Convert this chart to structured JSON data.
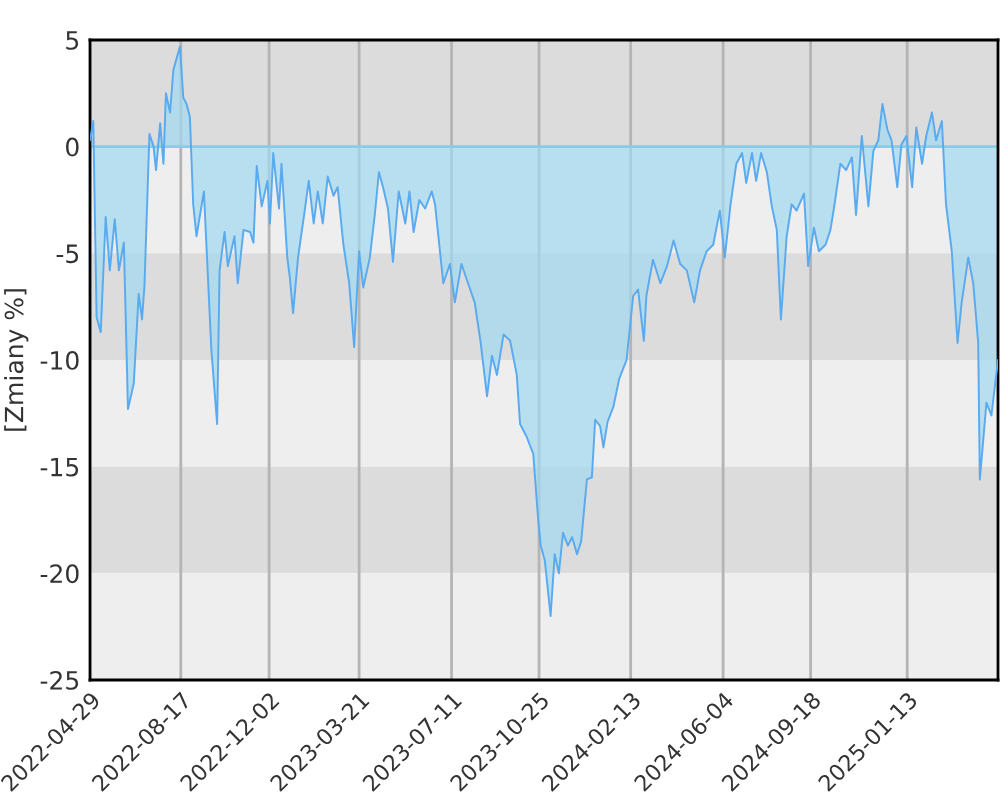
{
  "chart_data": {
    "type": "area",
    "ylabel": "[Zmiany %]",
    "x": [
      "2022-04-29",
      "2022-05-03",
      "2022-05-07",
      "2022-05-12",
      "2022-05-18",
      "2022-05-23",
      "2022-05-29",
      "2022-06-03",
      "2022-06-09",
      "2022-06-14",
      "2022-06-21",
      "2022-06-27",
      "2022-07-01",
      "2022-07-04",
      "2022-07-10",
      "2022-07-15",
      "2022-07-18",
      "2022-07-23",
      "2022-07-27",
      "2022-07-30",
      "2022-08-04",
      "2022-08-08",
      "2022-08-16",
      "2022-08-20",
      "2022-08-24",
      "2022-08-28",
      "2022-09-01",
      "2022-09-05",
      "2022-09-14",
      "2022-09-17",
      "2022-09-23",
      "2022-09-30",
      "2022-10-03",
      "2022-10-09",
      "2022-10-13",
      "2022-10-21",
      "2022-10-25",
      "2022-11-01",
      "2022-11-09",
      "2022-11-13",
      "2022-11-17",
      "2022-11-23",
      "2022-11-30",
      "2022-12-03",
      "2022-12-07",
      "2022-12-14",
      "2022-12-17",
      "2022-12-24",
      "2022-12-27",
      "2022-12-31",
      "2023-01-06",
      "2023-01-13",
      "2023-01-19",
      "2023-01-25",
      "2023-01-30",
      "2023-02-05",
      "2023-02-11",
      "2023-02-18",
      "2023-02-23",
      "2023-03-02",
      "2023-03-09",
      "2023-03-15",
      "2023-03-21",
      "2023-03-26",
      "2023-04-03",
      "2023-04-09",
      "2023-04-14",
      "2023-04-19",
      "2023-04-25",
      "2023-05-01",
      "2023-05-08",
      "2023-05-16",
      "2023-05-21",
      "2023-05-26",
      "2023-06-02",
      "2023-06-09",
      "2023-06-17",
      "2023-06-21",
      "2023-07-01",
      "2023-07-09",
      "2023-07-15",
      "2023-07-23",
      "2023-07-31",
      "2023-08-08",
      "2023-08-15",
      "2023-08-23",
      "2023-08-29",
      "2023-09-04",
      "2023-09-12",
      "2023-09-20",
      "2023-09-28",
      "2023-10-02",
      "2023-10-10",
      "2023-10-18",
      "2023-10-24",
      "2023-10-27",
      "2023-11-01",
      "2023-11-08",
      "2023-11-13",
      "2023-11-18",
      "2023-11-23",
      "2023-11-29",
      "2023-12-04",
      "2023-12-10",
      "2023-12-15",
      "2023-12-22",
      "2023-12-28",
      "2024-01-01",
      "2024-01-07",
      "2024-01-11",
      "2024-01-16",
      "2024-01-23",
      "2024-01-30",
      "2024-02-08",
      "2024-02-16",
      "2024-02-22",
      "2024-02-29",
      "2024-03-03",
      "2024-03-11",
      "2024-03-20",
      "2024-03-28",
      "2024-04-05",
      "2024-04-13",
      "2024-04-21",
      "2024-04-30",
      "2024-05-07",
      "2024-05-15",
      "2024-05-23",
      "2024-05-31",
      "2024-06-06",
      "2024-06-13",
      "2024-06-20",
      "2024-06-27",
      "2024-07-02",
      "2024-07-09",
      "2024-07-14",
      "2024-07-20",
      "2024-07-27",
      "2024-08-02",
      "2024-08-08",
      "2024-08-13",
      "2024-08-20",
      "2024-08-26",
      "2024-09-01",
      "2024-09-10",
      "2024-09-15",
      "2024-09-22",
      "2024-09-28",
      "2024-10-06",
      "2024-10-12",
      "2024-10-17",
      "2024-10-24",
      "2024-10-31",
      "2024-11-07",
      "2024-11-12",
      "2024-11-19",
      "2024-11-27",
      "2024-12-03",
      "2024-12-09",
      "2024-12-14",
      "2024-12-20",
      "2024-12-25",
      "2025-01-01",
      "2025-01-06",
      "2025-01-12",
      "2025-01-19",
      "2025-01-24",
      "2025-01-31",
      "2025-02-05",
      "2025-02-12",
      "2025-02-17",
      "2025-02-24",
      "2025-03-01",
      "2025-03-08",
      "2025-03-15",
      "2025-03-20",
      "2025-03-28",
      "2025-04-03",
      "2025-04-09",
      "2025-04-11",
      "2025-04-19",
      "2025-04-25",
      "2025-05-03"
    ],
    "series": [
      {
        "color": "#5aaaf0",
        "values": [
          0.3,
          1.2,
          -8.0,
          -8.7,
          -3.3,
          -5.8,
          -3.4,
          -5.8,
          -4.5,
          -12.3,
          -11.1,
          -6.9,
          -8.1,
          -6.5,
          0.6,
          0.0,
          -1.1,
          1.1,
          -0.8,
          2.5,
          1.6,
          3.6,
          4.7,
          2.3,
          2.0,
          1.4,
          -2.7,
          -4.2,
          -2.1,
          -4.6,
          -9.5,
          -13.0,
          -5.8,
          -4.0,
          -5.6,
          -4.2,
          -6.4,
          -3.9,
          -4.0,
          -4.5,
          -0.9,
          -2.8,
          -1.6,
          -3.6,
          -0.3,
          -2.9,
          -0.8,
          -5.2,
          -6.1,
          -7.8,
          -5.2,
          -3.3,
          -1.6,
          -3.6,
          -2.1,
          -3.6,
          -1.4,
          -2.3,
          -1.9,
          -4.6,
          -6.4,
          -9.4,
          -4.9,
          -6.6,
          -5.2,
          -3.2,
          -1.2,
          -1.9,
          -2.9,
          -5.4,
          -2.1,
          -3.6,
          -2.1,
          -4.0,
          -2.5,
          -2.9,
          -2.1,
          -2.7,
          -6.4,
          -5.5,
          -7.3,
          -5.5,
          -6.4,
          -7.3,
          -9.1,
          -11.7,
          -9.8,
          -10.7,
          -8.8,
          -9.1,
          -10.7,
          -13.0,
          -13.6,
          -14.4,
          -17.5,
          -18.7,
          -19.4,
          -22.0,
          -19.1,
          -20.0,
          -18.1,
          -18.7,
          -18.3,
          -19.1,
          -18.5,
          -15.6,
          -15.5,
          -12.8,
          -13.1,
          -14.1,
          -12.9,
          -12.2,
          -10.9,
          -10.0,
          -7.0,
          -6.7,
          -9.1,
          -7.0,
          -5.3,
          -6.4,
          -5.6,
          -4.4,
          -5.5,
          -5.8,
          -7.3,
          -5.8,
          -4.9,
          -4.6,
          -3.0,
          -5.2,
          -2.7,
          -0.8,
          -0.3,
          -1.7,
          -0.3,
          -1.6,
          -0.3,
          -1.2,
          -2.8,
          -3.9,
          -8.1,
          -4.2,
          -2.7,
          -3.0,
          -2.2,
          -5.6,
          -3.8,
          -4.9,
          -4.6,
          -3.9,
          -2.7,
          -0.8,
          -1.1,
          -0.5,
          -3.2,
          0.5,
          -2.8,
          -0.2,
          0.3,
          2.0,
          0.8,
          0.3,
          -1.9,
          0.1,
          0.5,
          -1.9,
          0.9,
          -0.8,
          0.5,
          1.6,
          0.3,
          1.2,
          -2.7,
          -4.9,
          -9.2,
          -7.3,
          -5.2,
          -6.4,
          -9.2,
          -15.6,
          -12.0,
          -12.6,
          -10.0
        ]
      }
    ],
    "xlim": [
      "2022-04-29",
      "2025-05-03"
    ],
    "xticks": [
      "2022-04-29",
      "2022-08-17",
      "2022-12-02",
      "2023-03-21",
      "2023-07-11",
      "2023-10-25",
      "2024-02-13",
      "2024-06-04",
      "2024-09-18",
      "2025-01-13"
    ],
    "ylim": [
      -25,
      5
    ],
    "yticks": [
      -25,
      -20,
      -15,
      -10,
      -5,
      0,
      5
    ],
    "grid": "x",
    "ref_lines": [
      {
        "axis": "y",
        "value": 0,
        "color": "#87cde8"
      }
    ],
    "bands": [
      {
        "axis": "y",
        "from": 0,
        "to": 5,
        "color": "#dcdcdc"
      },
      {
        "axis": "y",
        "from": -5,
        "to": 0,
        "color": "#eeeeee"
      },
      {
        "axis": "y",
        "from": -10,
        "to": -5,
        "color": "#dcdcdc"
      },
      {
        "axis": "y",
        "from": -15,
        "to": -10,
        "color": "#eeeeee"
      },
      {
        "axis": "y",
        "from": -20,
        "to": -15,
        "color": "#dcdcdc"
      },
      {
        "axis": "y",
        "from": -25,
        "to": -20,
        "color": "#eeeeee"
      }
    ]
  }
}
